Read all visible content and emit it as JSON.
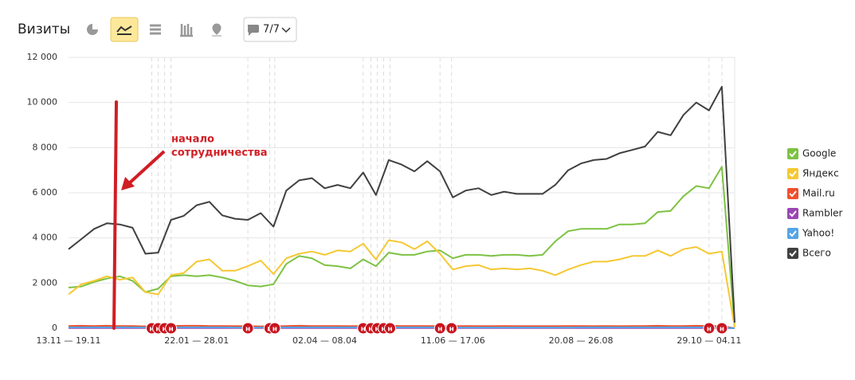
{
  "header": {
    "title": "Визиты",
    "filter_label": "7/7"
  },
  "chart_data": {
    "type": "line",
    "categories": [
      "13.11 — 19.11",
      null,
      null,
      null,
      null,
      null,
      null,
      null,
      null,
      null,
      "22.01 — 28.01",
      null,
      null,
      null,
      null,
      null,
      null,
      null,
      null,
      null,
      "02.04 — 08.04",
      null,
      null,
      null,
      null,
      null,
      null,
      null,
      null,
      null,
      "11.06 — 17.06",
      null,
      null,
      null,
      null,
      null,
      null,
      null,
      null,
      null,
      "20.08 — 26.08",
      null,
      null,
      null,
      null,
      null,
      null,
      null,
      null,
      null,
      "29.10 — 04.11",
      null,
      null
    ],
    "series": [
      {
        "name": "Google",
        "color": "#7dc243",
        "values": [
          1800,
          1850,
          2050,
          2200,
          2300,
          2100,
          1600,
          1750,
          2300,
          2350,
          2300,
          2350,
          2250,
          2100,
          1900,
          1850,
          1950,
          2850,
          3200,
          3100,
          2800,
          2750,
          2650,
          3050,
          2750,
          3350,
          3250,
          3250,
          3400,
          3450,
          3100,
          3250,
          3250,
          3200,
          3250,
          3250,
          3200,
          3250,
          3850,
          4300,
          4400,
          4400,
          4400,
          4600,
          4600,
          4650,
          5150,
          5200,
          5850,
          6300,
          6200,
          7150,
          50
        ]
      },
      {
        "name": "Яндекс",
        "color": "#f5c832",
        "values": [
          1500,
          1950,
          2100,
          2300,
          2150,
          2250,
          1600,
          1500,
          2350,
          2450,
          2950,
          3050,
          2550,
          2550,
          2750,
          3000,
          2400,
          3100,
          3300,
          3400,
          3250,
          3450,
          3400,
          3750,
          3050,
          3900,
          3800,
          3500,
          3850,
          3300,
          2600,
          2750,
          2800,
          2600,
          2650,
          2600,
          2650,
          2550,
          2350,
          2600,
          2800,
          2950,
          2950,
          3050,
          3200,
          3200,
          3450,
          3200,
          3500,
          3600,
          3300,
          3400,
          50
        ]
      },
      {
        "name": "Mail.ru",
        "color": "#f0502d",
        "values": [
          100,
          110,
          100,
          110,
          100,
          100,
          80,
          80,
          100,
          110,
          110,
          100,
          100,
          90,
          90,
          80,
          80,
          100,
          110,
          100,
          100,
          100,
          90,
          100,
          90,
          110,
          100,
          100,
          100,
          90,
          90,
          100,
          90,
          90,
          100,
          90,
          90,
          90,
          90,
          100,
          100,
          90,
          100,
          90,
          100,
          100,
          110,
          100,
          100,
          110,
          100,
          100,
          0
        ]
      },
      {
        "name": "Rambler",
        "color": "#9b46b4",
        "values": [
          10,
          10,
          10,
          10,
          10,
          10,
          10,
          10,
          10,
          10,
          10,
          10,
          10,
          10,
          10,
          10,
          10,
          10,
          10,
          10,
          10,
          10,
          10,
          10,
          10,
          10,
          10,
          10,
          10,
          10,
          10,
          10,
          10,
          10,
          10,
          10,
          10,
          10,
          10,
          10,
          10,
          10,
          10,
          10,
          10,
          10,
          10,
          10,
          10,
          10,
          10,
          10,
          0
        ]
      },
      {
        "name": "Yahoo!",
        "color": "#55a5e6",
        "values": [
          40,
          40,
          40,
          40,
          40,
          40,
          30,
          30,
          40,
          40,
          40,
          40,
          40,
          30,
          30,
          30,
          30,
          40,
          40,
          40,
          40,
          40,
          40,
          40,
          40,
          40,
          40,
          40,
          40,
          40,
          30,
          30,
          30,
          30,
          30,
          30,
          30,
          30,
          30,
          30,
          40,
          40,
          40,
          40,
          40,
          40,
          40,
          40,
          40,
          40,
          40,
          40,
          0
        ]
      },
      {
        "name": "Всего",
        "color": "#404040",
        "values": [
          3500,
          3950,
          4400,
          4650,
          4600,
          4450,
          3300,
          3350,
          4800,
          4980,
          5450,
          5600,
          5000,
          4850,
          4800,
          5100,
          4500,
          6100,
          6550,
          6650,
          6200,
          6350,
          6200,
          6900,
          5900,
          7450,
          7250,
          6950,
          7400,
          6950,
          5800,
          6100,
          6200,
          5900,
          6050,
          5950,
          5950,
          5950,
          6350,
          7000,
          7300,
          7450,
          7500,
          7750,
          7900,
          8050,
          8700,
          8550,
          9450,
          10000,
          9650,
          10700,
          250
        ]
      }
    ],
    "ylim": [
      0,
      12000
    ],
    "yticks": [
      0,
      {
        "value": 2000,
        "label": "2 000"
      },
      {
        "value": 4000,
        "label": "4 000"
      },
      {
        "value": 6000,
        "label": "6 000"
      },
      {
        "value": 8000,
        "label": "8 000"
      },
      {
        "value": 10000,
        "label": "10 000"
      },
      {
        "value": 12000,
        "label": "12 000"
      }
    ],
    "grid": true,
    "legend": "right",
    "annotation": [
      "начало",
      "сотрудничества"
    ],
    "note_marks": {
      "label": "н",
      "at": [
        6.5,
        7,
        7.5,
        8,
        14,
        15.7,
        16.1,
        23,
        23.6,
        24.1,
        24.6,
        25.1,
        29,
        29.9,
        50,
        51
      ]
    }
  }
}
